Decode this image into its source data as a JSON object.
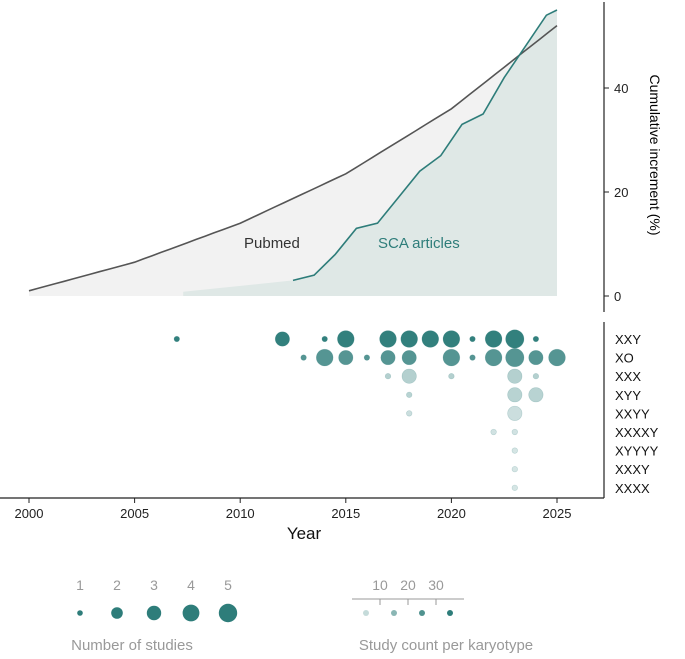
{
  "chart_data": [
    {
      "type": "area",
      "ylabel": "Cumulative increment (%)",
      "xlim": [
        2000,
        2025
      ],
      "ylim": [
        0,
        55
      ],
      "ytick_values": [
        0,
        20,
        40
      ],
      "ytick_labels": [
        "0",
        "20",
        "40"
      ],
      "annotations": {
        "pubmed": "Pubmed",
        "sca": "SCA articles"
      },
      "colors": {
        "pubmed_line": "#555555",
        "pubmed_fill": "#f2f2f2",
        "sca_line": "#2e7d7a",
        "sca_fill": "#dfe8e6",
        "annotation_sca": "#2e7d7a",
        "annotation_pubmed": "#333333"
      },
      "series": [
        {
          "name": "Pubmed",
          "x": [
            2000,
            2005,
            2010,
            2015,
            2020,
            2025
          ],
          "values": [
            1,
            6.5,
            14,
            23.5,
            36,
            52
          ]
        },
        {
          "name": "SCA articles",
          "x": [
            2012.5,
            2013.5,
            2014.5,
            2015.5,
            2016.5,
            2017.5,
            2018.5,
            2019.5,
            2020.5,
            2021.5,
            2022.5,
            2023.5,
            2024.5,
            2025
          ],
          "values": [
            3,
            4,
            8,
            13,
            14,
            19,
            24,
            27,
            33,
            35,
            42,
            48,
            54,
            55
          ]
        }
      ]
    },
    {
      "type": "scatter",
      "xlabel": "Year",
      "xlim": [
        2000,
        2027
      ],
      "xtick_values": [
        2000,
        2005,
        2010,
        2015,
        2020,
        2025
      ],
      "xtick_labels": [
        "2000",
        "2005",
        "2010",
        "2015",
        "2020",
        "2025"
      ],
      "karyotypes": [
        "XXY",
        "XO",
        "XXX",
        "XYY",
        "XXYY",
        "XXXXY",
        "XYYYY",
        "XXXY",
        "XXXX"
      ],
      "bubble_color": "#2e7d7a",
      "points": [
        {
          "k": "XXY",
          "year": 2007,
          "studies": 1,
          "count": 30
        },
        {
          "k": "XXY",
          "year": 2012,
          "studies": 3,
          "count": 30
        },
        {
          "k": "XXY",
          "year": 2014,
          "studies": 1,
          "count": 30
        },
        {
          "k": "XXY",
          "year": 2015,
          "studies": 4,
          "count": 30
        },
        {
          "k": "XXY",
          "year": 2017,
          "studies": 4,
          "count": 30
        },
        {
          "k": "XXY",
          "year": 2018,
          "studies": 4,
          "count": 30
        },
        {
          "k": "XXY",
          "year": 2019,
          "studies": 4,
          "count": 30
        },
        {
          "k": "XXY",
          "year": 2020,
          "studies": 4,
          "count": 30
        },
        {
          "k": "XXY",
          "year": 2021,
          "studies": 1,
          "count": 30
        },
        {
          "k": "XXY",
          "year": 2022,
          "studies": 4,
          "count": 30
        },
        {
          "k": "XXY",
          "year": 2023,
          "studies": 5,
          "count": 30
        },
        {
          "k": "XXY",
          "year": 2024,
          "studies": 1,
          "count": 30
        },
        {
          "k": "XO",
          "year": 2013,
          "studies": 1,
          "count": 24
        },
        {
          "k": "XO",
          "year": 2014,
          "studies": 4,
          "count": 24
        },
        {
          "k": "XO",
          "year": 2015,
          "studies": 3,
          "count": 24
        },
        {
          "k": "XO",
          "year": 2016,
          "studies": 1,
          "count": 24
        },
        {
          "k": "XO",
          "year": 2017,
          "studies": 3,
          "count": 24
        },
        {
          "k": "XO",
          "year": 2018,
          "studies": 3,
          "count": 24
        },
        {
          "k": "XO",
          "year": 2020,
          "studies": 4,
          "count": 24
        },
        {
          "k": "XO",
          "year": 2021,
          "studies": 1,
          "count": 24
        },
        {
          "k": "XO",
          "year": 2022,
          "studies": 4,
          "count": 24
        },
        {
          "k": "XO",
          "year": 2023,
          "studies": 5,
          "count": 24
        },
        {
          "k": "XO",
          "year": 2024,
          "studies": 3,
          "count": 24
        },
        {
          "k": "XO",
          "year": 2025,
          "studies": 4,
          "count": 24
        },
        {
          "k": "XXX",
          "year": 2017,
          "studies": 1,
          "count": 8
        },
        {
          "k": "XXX",
          "year": 2018,
          "studies": 3,
          "count": 8
        },
        {
          "k": "XXX",
          "year": 2020,
          "studies": 1,
          "count": 8
        },
        {
          "k": "XXX",
          "year": 2023,
          "studies": 3,
          "count": 8
        },
        {
          "k": "XXX",
          "year": 2024,
          "studies": 1,
          "count": 8
        },
        {
          "k": "XYY",
          "year": 2018,
          "studies": 1,
          "count": 7
        },
        {
          "k": "XYY",
          "year": 2023,
          "studies": 3,
          "count": 7
        },
        {
          "k": "XYY",
          "year": 2024,
          "studies": 3,
          "count": 7
        },
        {
          "k": "XXYY",
          "year": 2018,
          "studies": 1,
          "count": 4
        },
        {
          "k": "XXYY",
          "year": 2023,
          "studies": 3,
          "count": 4
        },
        {
          "k": "XXXXY",
          "year": 2022,
          "studies": 1,
          "count": 3
        },
        {
          "k": "XXXXY",
          "year": 2023,
          "studies": 1,
          "count": 3
        },
        {
          "k": "XYYYY",
          "year": 2023,
          "studies": 1,
          "count": 2
        },
        {
          "k": "XXXY",
          "year": 2023,
          "studies": 1,
          "count": 2
        },
        {
          "k": "XXXX",
          "year": 2023,
          "studies": 1,
          "count": 2
        }
      ]
    }
  ],
  "legend_studies": {
    "title": "Number of studies",
    "values": [
      1,
      2,
      3,
      4,
      5
    ],
    "labels": [
      "1",
      "2",
      "3",
      "4",
      "5"
    ]
  },
  "legend_count": {
    "title": "Study count per karyotype",
    "tick_labels": [
      "10",
      "20",
      "30"
    ],
    "tick_values": [
      10,
      20,
      30
    ],
    "point_values": [
      5,
      15,
      25,
      35
    ]
  }
}
